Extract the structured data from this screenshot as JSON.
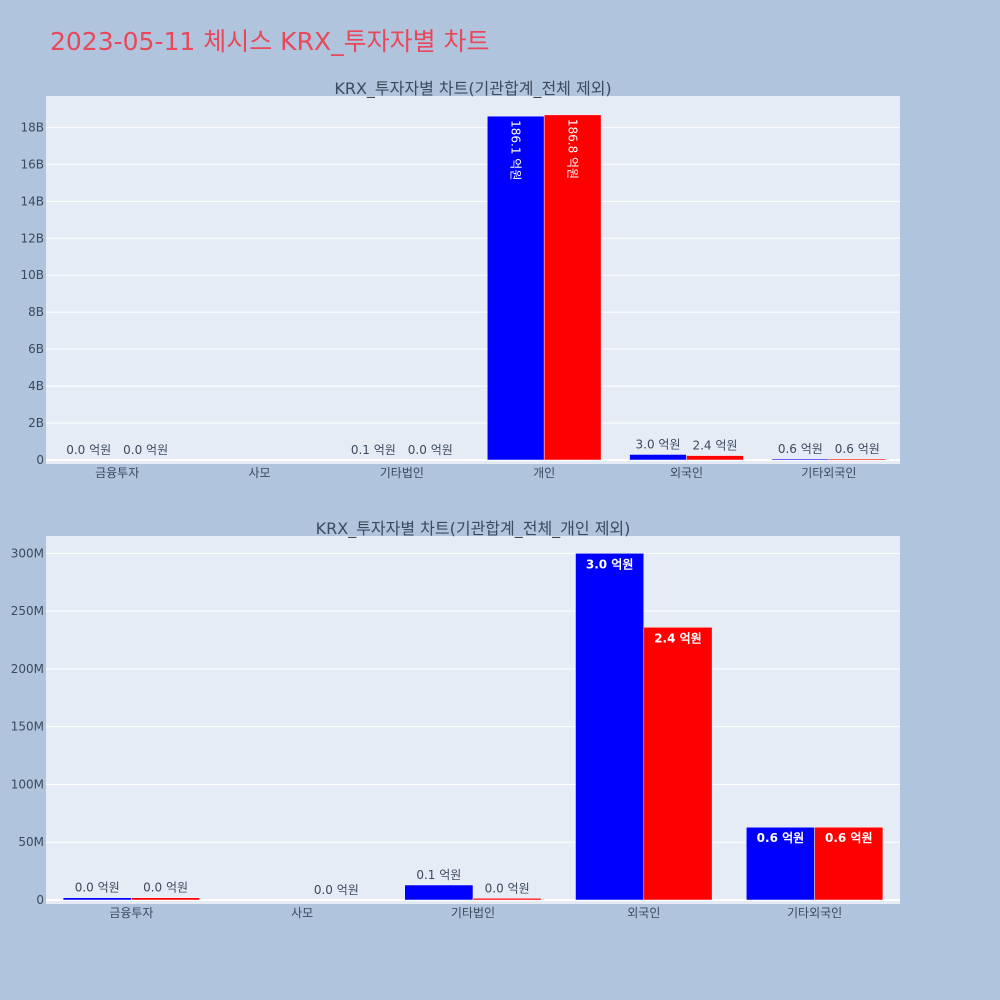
{
  "title": "2023-05-11 체시스 KRX_투자자별 차트",
  "chart_data": [
    {
      "type": "bar",
      "title": "KRX_투자자별 차트(기관합계_전체 제외)",
      "categories": [
        "금융투자",
        "사모",
        "기타법인",
        "개인",
        "외국인",
        "기타외국인"
      ],
      "yticks": [
        "0",
        "2B",
        "4B",
        "6B",
        "8B",
        "10B",
        "12B",
        "14B",
        "16B",
        "18B"
      ],
      "ylim": [
        0,
        19700000000
      ],
      "grid": true,
      "colors": [
        "#0000ff",
        "#ff0000"
      ],
      "series": [
        {
          "values": [
            1000000,
            0,
            10000000,
            18610000000,
            300000000,
            60000000
          ],
          "labels": [
            "0.0 억원",
            "",
            "0.1 억원",
            "186.1 억원",
            "3.0 억원",
            "0.6 억원"
          ]
        },
        {
          "values": [
            1000000,
            0,
            1000000,
            18680000000,
            240000000,
            60000000
          ],
          "labels": [
            "0.0 억원",
            "",
            "0.0 억원",
            "186.8 억원",
            "2.4 억원",
            "0.6 억원"
          ]
        }
      ]
    },
    {
      "type": "bar",
      "title": "KRX_투자자별 차트(기관합계_전체_개인 제외)",
      "categories": [
        "금융투자",
        "사모",
        "기타법인",
        "외국인",
        "기타외국인"
      ],
      "yticks": [
        "0",
        "50M",
        "100M",
        "150M",
        "200M",
        "250M",
        "300M"
      ],
      "ylim": [
        0,
        315000000
      ],
      "grid": true,
      "colors": [
        "#0000ff",
        "#ff0000"
      ],
      "series": [
        {
          "values": [
            2000000,
            0,
            13000000,
            300000000,
            63000000
          ],
          "labels": [
            "0.0 억원",
            "",
            "0.1 억원",
            "3.0 억원",
            "0.6 억원"
          ]
        },
        {
          "values": [
            2000000,
            0,
            1500000,
            236000000,
            63000000
          ],
          "labels": [
            "0.0 억원",
            "0.0 억원",
            "0.0 억원",
            "2.4 억원",
            "0.6 억원"
          ]
        }
      ]
    }
  ]
}
